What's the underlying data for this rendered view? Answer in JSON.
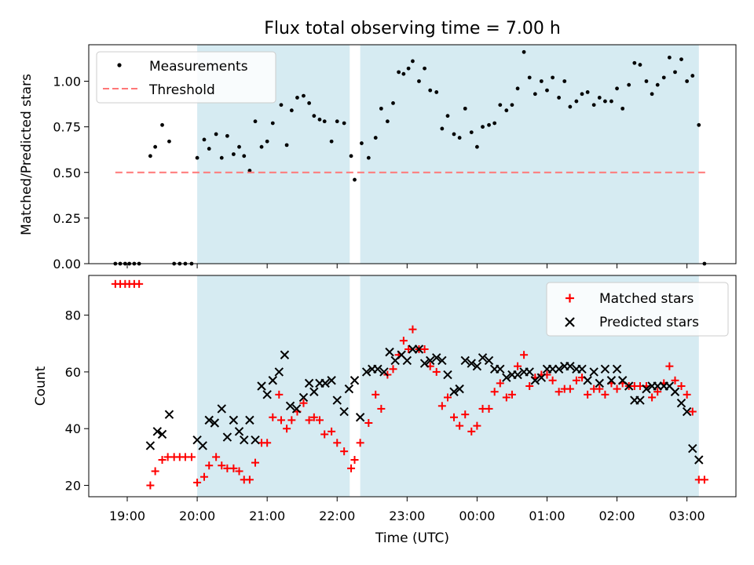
{
  "chart_data": {
    "title": "Flux total observing time = 7.00 h",
    "xlabel": "Time (UTC)",
    "x_tick_labels": [
      "19:00",
      "20:00",
      "21:00",
      "22:00",
      "23:00",
      "00:00",
      "01:00",
      "02:00",
      "03:00"
    ],
    "x_range_hours": [
      18.45,
      27.7
    ],
    "shaded_intervals_hours": [
      [
        20.0,
        22.18
      ],
      [
        22.33,
        27.17
      ]
    ],
    "panels": [
      {
        "type": "scatter",
        "ylabel": "Matched/Predicted stars",
        "ylim": [
          0.0,
          1.2
        ],
        "y_ticks": [
          "0.00",
          "0.25",
          "0.50",
          "0.75",
          "1.00"
        ],
        "legend_position": "upper left",
        "series": [
          {
            "name": "Measurements",
            "marker": "dot",
            "color": "#000000",
            "x": [
              18.83,
              18.9,
              18.97,
              19.03,
              19.1,
              19.17,
              19.33,
              19.4,
              19.5,
              19.6,
              19.67,
              19.75,
              19.83,
              19.92,
              20.0,
              20.1,
              20.17,
              20.27,
              20.35,
              20.43,
              20.52,
              20.6,
              20.67,
              20.75,
              20.83,
              20.92,
              21.0,
              21.08,
              21.2,
              21.28,
              21.35,
              21.43,
              21.52,
              21.6,
              21.67,
              21.75,
              21.82,
              21.92,
              22.0,
              22.1,
              22.2,
              22.25,
              22.35,
              22.45,
              22.55,
              22.63,
              22.72,
              22.8,
              22.88,
              22.95,
              23.02,
              23.08,
              23.17,
              23.25,
              23.33,
              23.42,
              23.5,
              23.58,
              23.67,
              23.75,
              23.83,
              23.92,
              24.0,
              24.08,
              24.17,
              24.25,
              24.33,
              24.42,
              24.5,
              24.58,
              24.67,
              24.75,
              24.83,
              24.92,
              25.0,
              25.08,
              25.17,
              25.25,
              25.33,
              25.42,
              25.5,
              25.58,
              25.67,
              25.75,
              25.83,
              25.92,
              26.0,
              26.08,
              26.17,
              26.25,
              26.33,
              26.42,
              26.5,
              26.58,
              26.67,
              26.75,
              26.83,
              26.92,
              27.0,
              27.08,
              27.17,
              27.25
            ],
            "y": [
              0.0,
              0.0,
              0.0,
              0.0,
              0.0,
              0.0,
              0.59,
              0.64,
              0.76,
              0.67,
              0.0,
              0.0,
              0.0,
              0.0,
              0.58,
              0.68,
              0.63,
              0.71,
              0.58,
              0.7,
              0.6,
              0.64,
              0.59,
              0.51,
              0.78,
              0.64,
              0.67,
              0.77,
              0.87,
              0.65,
              0.84,
              0.91,
              0.92,
              0.88,
              0.81,
              0.79,
              0.78,
              0.67,
              0.78,
              0.77,
              0.59,
              0.46,
              0.66,
              0.58,
              0.69,
              0.85,
              0.78,
              0.88,
              1.05,
              1.04,
              1.07,
              1.11,
              1.0,
              1.07,
              0.95,
              0.94,
              0.74,
              0.81,
              0.71,
              0.69,
              0.85,
              0.72,
              0.64,
              0.75,
              0.76,
              0.77,
              0.87,
              0.84,
              0.87,
              0.96,
              1.16,
              1.02,
              0.93,
              1.0,
              0.95,
              1.02,
              0.91,
              1.0,
              0.86,
              0.89,
              0.93,
              0.94,
              0.87,
              0.91,
              0.89,
              0.89,
              0.96,
              0.85,
              0.98,
              1.1,
              1.09,
              1.0,
              0.93,
              0.98,
              1.02,
              1.13,
              1.05,
              1.12,
              1.0,
              1.03,
              0.76,
              0.0
            ]
          },
          {
            "name": "Threshold",
            "marker": "dashed-line",
            "color": "#ff7777",
            "x": [
              18.83,
              27.3
            ],
            "y": [
              0.5,
              0.5
            ]
          }
        ]
      },
      {
        "type": "scatter",
        "ylabel": "Count",
        "ylim": [
          16,
          94
        ],
        "y_ticks": [
          "20",
          "40",
          "60",
          "80"
        ],
        "legend_position": "upper right",
        "series": [
          {
            "name": "Matched stars",
            "marker": "plus",
            "color": "#ff0000",
            "x": [
              18.83,
              18.9,
              18.97,
              19.03,
              19.1,
              19.17,
              19.33,
              19.4,
              19.5,
              19.58,
              19.67,
              19.75,
              19.83,
              19.92,
              20.0,
              20.1,
              20.17,
              20.27,
              20.35,
              20.43,
              20.52,
              20.6,
              20.67,
              20.75,
              20.83,
              20.92,
              21.0,
              21.08,
              21.17,
              21.2,
              21.28,
              21.35,
              21.43,
              21.52,
              21.6,
              21.67,
              21.75,
              21.82,
              21.92,
              22.0,
              22.1,
              22.2,
              22.25,
              22.33,
              22.45,
              22.55,
              22.63,
              22.72,
              22.8,
              22.88,
              22.95,
              23.02,
              23.08,
              23.17,
              23.25,
              23.33,
              23.42,
              23.5,
              23.58,
              23.67,
              23.75,
              23.83,
              23.92,
              24.0,
              24.08,
              24.17,
              24.25,
              24.33,
              24.42,
              24.5,
              24.58,
              24.67,
              24.75,
              24.83,
              24.92,
              25.0,
              25.08,
              25.17,
              25.25,
              25.33,
              25.42,
              25.5,
              25.58,
              25.67,
              25.75,
              25.83,
              25.92,
              26.0,
              26.08,
              26.17,
              26.25,
              26.33,
              26.42,
              26.5,
              26.58,
              26.67,
              26.75,
              26.83,
              26.92,
              27.0,
              27.08,
              27.17,
              27.25
            ],
            "y": [
              91,
              91,
              91,
              91,
              91,
              91,
              20,
              25,
              29,
              30,
              30,
              30,
              30,
              30,
              21,
              23,
              27,
              30,
              27,
              26,
              26,
              25,
              22,
              22,
              28,
              35,
              35,
              44,
              52,
              43,
              40,
              43,
              46,
              49,
              43,
              44,
              43,
              38,
              39,
              35,
              32,
              26,
              29,
              35,
              42,
              52,
              47,
              59,
              61,
              66,
              71,
              68,
              75,
              68,
              68,
              62,
              60,
              48,
              51,
              44,
              41,
              45,
              39,
              41,
              47,
              47,
              53,
              56,
              51,
              52,
              62,
              66,
              55,
              58,
              59,
              59,
              57,
              53,
              54,
              54,
              57,
              58,
              52,
              54,
              54,
              52,
              56,
              54,
              56,
              55,
              55,
              55,
              55,
              51,
              53,
              56,
              62,
              57,
              55,
              52,
              46,
              22,
              22
            ]
          },
          {
            "name": "Predicted stars",
            "marker": "x",
            "color": "#000000",
            "x": [
              19.33,
              19.43,
              19.5,
              19.6,
              20.0,
              20.08,
              20.17,
              20.25,
              20.35,
              20.43,
              20.52,
              20.6,
              20.67,
              20.75,
              20.83,
              20.92,
              21.0,
              21.08,
              21.17,
              21.25,
              21.33,
              21.42,
              21.52,
              21.6,
              21.67,
              21.75,
              21.83,
              21.92,
              22.0,
              22.1,
              22.17,
              22.25,
              22.33,
              22.42,
              22.5,
              22.58,
              22.67,
              22.75,
              22.83,
              22.92,
              23.0,
              23.08,
              23.17,
              23.25,
              23.33,
              23.42,
              23.5,
              23.58,
              23.67,
              23.75,
              23.83,
              23.92,
              24.0,
              24.08,
              24.17,
              24.25,
              24.33,
              24.42,
              24.5,
              24.58,
              24.67,
              24.75,
              24.83,
              24.92,
              25.0,
              25.08,
              25.17,
              25.25,
              25.33,
              25.42,
              25.5,
              25.58,
              25.67,
              25.75,
              25.83,
              25.92,
              26.0,
              26.08,
              26.17,
              26.25,
              26.33,
              26.42,
              26.5,
              26.58,
              26.67,
              26.75,
              26.83,
              26.92,
              27.0,
              27.08,
              27.17
            ],
            "y": [
              34,
              39,
              38,
              45,
              36,
              34,
              43,
              42,
              47,
              37,
              43,
              39,
              36,
              43,
              36,
              55,
              52,
              57,
              60,
              66,
              48,
              47,
              51,
              56,
              53,
              56,
              56,
              57,
              50,
              46,
              54,
              57,
              44,
              60,
              61,
              61,
              60,
              67,
              64,
              66,
              64,
              68,
              68,
              63,
              64,
              65,
              64,
              59,
              53,
              54,
              64,
              63,
              62,
              65,
              64,
              61,
              61,
              58,
              59,
              59,
              60,
              60,
              57,
              58,
              61,
              61,
              61,
              62,
              62,
              61,
              61,
              57,
              60,
              56,
              61,
              57,
              61,
              57,
              55,
              50,
              50,
              54,
              55,
              55,
              55,
              55,
              53,
              49,
              46,
              33,
              29
            ]
          }
        ]
      }
    ]
  }
}
